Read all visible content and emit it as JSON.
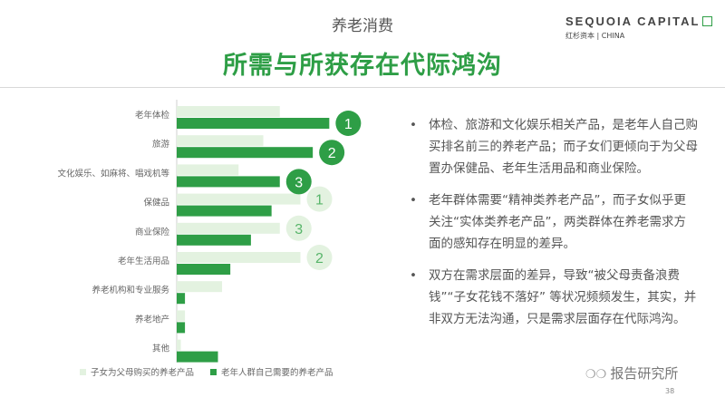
{
  "header": {
    "subtitle": "养老消费",
    "title": "所需与所获存在代际鸿沟",
    "logo_main": "SEQUOIA CAPITAL",
    "logo_sub": "红杉资本 | CHINA"
  },
  "colors": {
    "accent": "#2e9e46",
    "light_bar": "#e3f2e0",
    "dark_bar": "#2e9e46",
    "badge_light_fill": "#e3f2e0",
    "badge_light_text": "#58b56a"
  },
  "chart_data": {
    "type": "bar",
    "orientation": "horizontal",
    "categories": [
      "老年体检",
      "旅游",
      "文化娱乐、如麻将、唱戏机等",
      "保健品",
      "商业保险",
      "老年生活用品",
      "养老机构和专业服务",
      "养老地产",
      "其他"
    ],
    "series": [
      {
        "name": "子女为父母购买的养老产品",
        "values": [
          25,
          21,
          15,
          30,
          25,
          30,
          11,
          2,
          1
        ]
      },
      {
        "name": "老年人群自己需要的养老产品",
        "values": [
          37,
          33,
          25,
          23,
          18,
          13,
          2,
          2,
          10
        ]
      }
    ],
    "rank_labels": [
      {
        "category": "老年体检",
        "series": 1,
        "text": "1"
      },
      {
        "category": "旅游",
        "series": 1,
        "text": "2"
      },
      {
        "category": "文化娱乐、如麻将、唱戏机等",
        "series": 1,
        "text": "3"
      },
      {
        "category": "保健品",
        "series": 0,
        "text": "1"
      },
      {
        "category": "商业保险",
        "series": 0,
        "text": "3"
      },
      {
        "category": "老年生活用品",
        "series": 0,
        "text": "2"
      }
    ],
    "xlim": [
      0,
      40
    ],
    "grid": false,
    "legend_position": "bottom"
  },
  "bullets": [
    "体检、旅游和文化娱乐相关产品，是老年人自己购买排名前三的养老产品；而子女们更倾向于为父母置办保健品、老年生活用品和商业保险。",
    "老年群体需要“精神类养老产品”，而子女似乎更关注“实体类养老产品”，两类群体在养老需求方面的感知存在明显的差异。",
    "双方在需求层面的差异，导致“被父母责备浪费钱”“子女花钱不落好” 等状况频频发生，其实，并非双方无法沟通，只是需求层面存在代际鸿沟。"
  ],
  "bullet_symbol": "•",
  "footer": {
    "watermark": "报告研究所",
    "watermark_icon": "wechat-icon",
    "page_number": "38"
  }
}
